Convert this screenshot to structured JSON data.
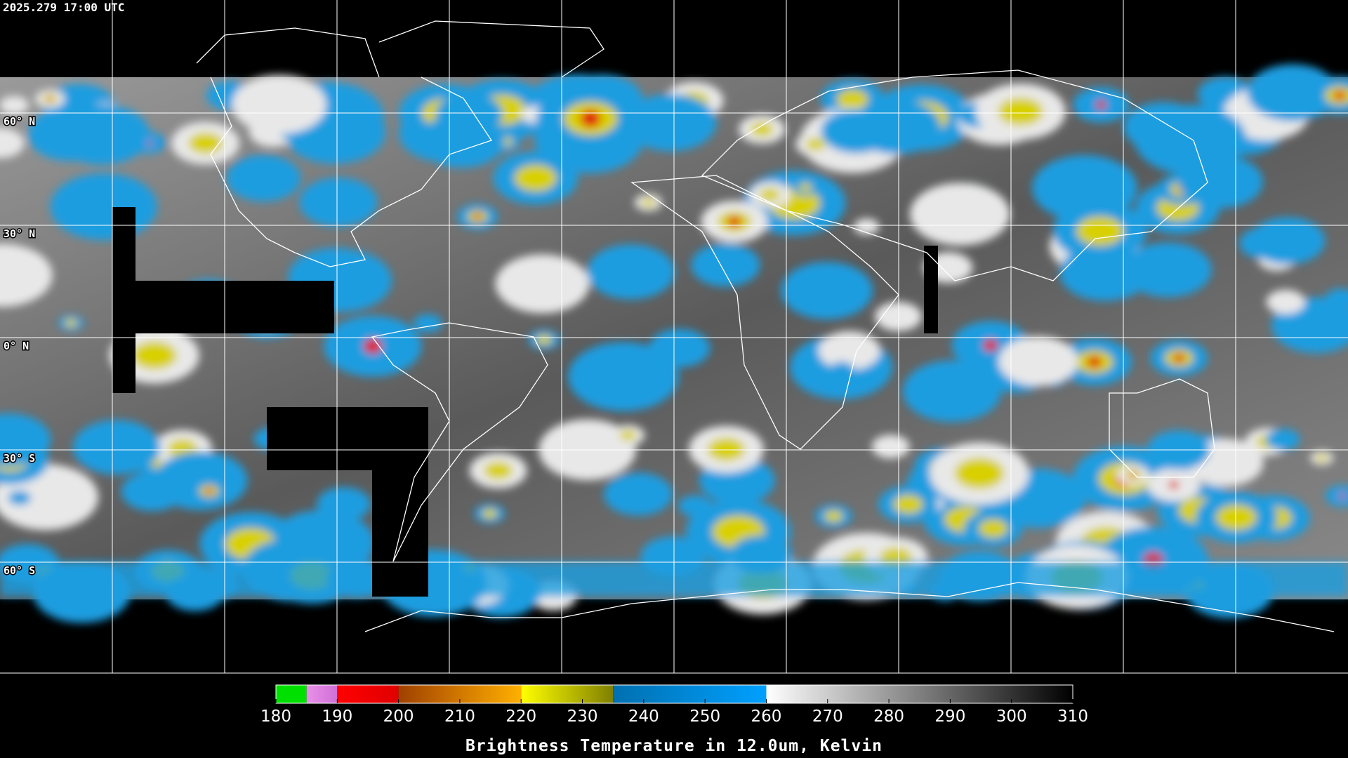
{
  "header": {
    "timestamp": "2025.279 17:00 UTC"
  },
  "map": {
    "latitudes": [
      {
        "value": 60,
        "label": "60° N"
      },
      {
        "value": 30,
        "label": "30° N"
      },
      {
        "value": 0,
        "label": "0° N"
      },
      {
        "value": -30,
        "label": "30° S"
      },
      {
        "value": -60,
        "label": "60° S"
      }
    ]
  },
  "colorbar": {
    "title": "Brightness Temperature in 12.0um, Kelvin",
    "range": [
      180,
      310
    ],
    "ticks": [
      180,
      190,
      200,
      210,
      220,
      230,
      240,
      250,
      260,
      270,
      280,
      290,
      300,
      310
    ],
    "segments": [
      {
        "from": 180,
        "to": 185,
        "colors": [
          "#00e000",
          "#00e000"
        ]
      },
      {
        "from": 185,
        "to": 190,
        "colors": [
          "#e890e8",
          "#d070d8"
        ]
      },
      {
        "from": 190,
        "to": 200,
        "colors": [
          "#ff0000",
          "#e00000"
        ]
      },
      {
        "from": 200,
        "to": 220,
        "colors": [
          "#a04000",
          "#ffb000"
        ]
      },
      {
        "from": 220,
        "to": 235,
        "colors": [
          "#ffff00",
          "#808000"
        ]
      },
      {
        "from": 235,
        "to": 260,
        "colors": [
          "#0070b0",
          "#00a0ff"
        ]
      },
      {
        "from": 260,
        "to": 310,
        "colors": [
          "#ffffff",
          "#000000"
        ]
      }
    ]
  }
}
